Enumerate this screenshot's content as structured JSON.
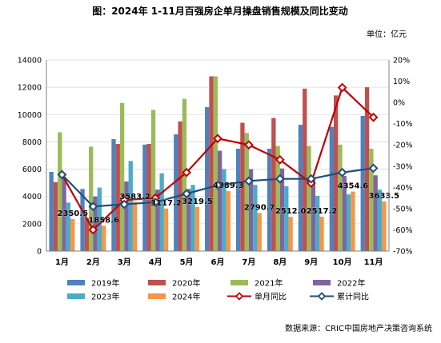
{
  "chart_data": {
    "type": "bar",
    "title": "图：2024年 1-11月百强房企单月操盘销售规模及同比变动",
    "unit_label": "单位：亿元",
    "source": "数据来源：CRIC中国房地产决策咨询系统",
    "categories": [
      "1月",
      "2月",
      "3月",
      "4月",
      "5月",
      "6月",
      "7月",
      "8月",
      "9月",
      "10月",
      "11月"
    ],
    "ylim": [
      0,
      14000
    ],
    "y_ticks": [
      0,
      2000,
      4000,
      6000,
      8000,
      10000,
      12000,
      14000
    ],
    "y2lim": [
      -70,
      20
    ],
    "y2_ticks": [
      20,
      10,
      0,
      -10,
      -20,
      -30,
      -40,
      -50,
      -60,
      -70
    ],
    "y2_tick_suffix": "%",
    "grid": true,
    "legend_position": "bottom",
    "bar_series": [
      {
        "name": "2019年",
        "color": "#4f81bd",
        "values": [
          5800,
          4550,
          8200,
          7800,
          8550,
          10550,
          7500,
          7500,
          9250,
          9100,
          9900
        ]
      },
      {
        "name": "2020年",
        "color": "#c0504d",
        "values": [
          5050,
          2400,
          7850,
          7850,
          9500,
          12800,
          9400,
          9750,
          11900,
          11400,
          12000
        ]
      },
      {
        "name": "2021年",
        "color": "#9bbb59",
        "values": [
          8700,
          7650,
          10850,
          10350,
          11150,
          12800,
          8650,
          7700,
          7700,
          7800,
          7500
        ]
      },
      {
        "name": "2022年",
        "color": "#8064a2",
        "values": [
          5300,
          4000,
          5100,
          4500,
          4550,
          7350,
          6000,
          6050,
          5350,
          5500,
          5550
        ]
      },
      {
        "name": "2023年",
        "color": "#4bacc6",
        "values": [
          3550,
          4650,
          6600,
          5700,
          4850,
          6000,
          4850,
          4750,
          4050,
          4150,
          4500
        ]
      },
      {
        "name": "2024年",
        "color": "#f79646",
        "values": [
          2350.5,
          1858.6,
          3583.2,
          3117.2,
          3219.5,
          4389.3,
          2790.7,
          2512.0,
          2517.2,
          4354.6,
          3633.5
        ]
      }
    ],
    "line_series": [
      {
        "name": "单月同比",
        "color": "#c00000",
        "marker": "diamond",
        "values": [
          -34,
          -60,
          -46,
          -45,
          -33,
          -17,
          -20,
          -27,
          -38,
          7,
          -7
        ]
      },
      {
        "name": "累计同比",
        "color": "#1f4e79",
        "marker": "diamond",
        "values": [
          -34,
          -49,
          -48,
          -47,
          -43,
          -39,
          -37,
          -36,
          -36,
          -33,
          -31
        ]
      }
    ],
    "data_labels": [
      "2350.5",
      "1858.6",
      "3583.2",
      "3117.2",
      "3219.5",
      "4389.3",
      "2790.7",
      "2512.0",
      "2517.2",
      "4354.6",
      "3633.5"
    ]
  }
}
